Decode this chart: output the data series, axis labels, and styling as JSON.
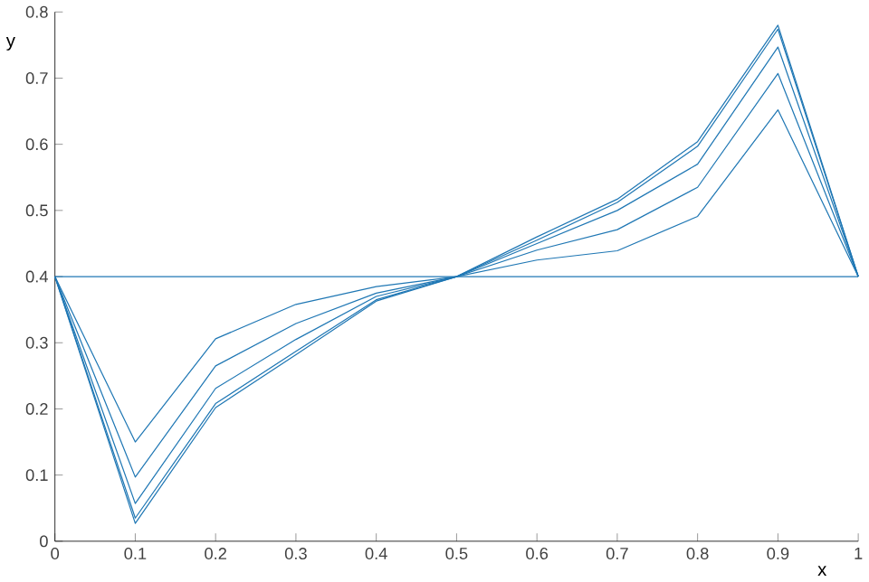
{
  "chart_data": {
    "type": "line",
    "xlabel": "x",
    "ylabel": "y",
    "x": [
      0,
      0.1,
      0.2,
      0.3,
      0.4,
      0.5,
      0.6,
      0.7,
      0.8,
      0.9,
      1
    ],
    "series": [
      {
        "color": "#1f77b4",
        "values": [
          0.4,
          0.4,
          0.4,
          0.4,
          0.4,
          0.4,
          0.4,
          0.4,
          0.4,
          0.4,
          0.4
        ]
      },
      {
        "color": "#1f77b4",
        "values": [
          0.4,
          0.15,
          0.306,
          0.358,
          0.385,
          0.4,
          0.425,
          0.439,
          0.491,
          0.652,
          0.4
        ]
      },
      {
        "color": "#1f77b4",
        "values": [
          0.4,
          0.097,
          0.265,
          0.329,
          0.375,
          0.4,
          0.44,
          0.471,
          0.535,
          0.707,
          0.4
        ]
      },
      {
        "color": "#1f77b4",
        "values": [
          0.4,
          0.057,
          0.231,
          0.305,
          0.37,
          0.4,
          0.45,
          0.5,
          0.57,
          0.747,
          0.4
        ]
      },
      {
        "color": "#1f77b4",
        "values": [
          0.4,
          0.035,
          0.208,
          0.287,
          0.365,
          0.4,
          0.455,
          0.512,
          0.597,
          0.774,
          0.4
        ]
      },
      {
        "color": "#1f77b4",
        "values": [
          0.4,
          0.027,
          0.202,
          0.282,
          0.363,
          0.4,
          0.46,
          0.517,
          0.604,
          0.78,
          0.4
        ]
      }
    ],
    "xlim": [
      0,
      1
    ],
    "ylim": [
      0,
      0.8
    ],
    "xticks": [
      0,
      0.1,
      0.2,
      0.3,
      0.4,
      0.5,
      0.6,
      0.7,
      0.8,
      0.9,
      1
    ],
    "yticks": [
      0,
      0.1,
      0.2,
      0.3,
      0.4,
      0.5,
      0.6,
      0.7,
      0.8
    ],
    "marker": "none",
    "line_style": "solid"
  }
}
